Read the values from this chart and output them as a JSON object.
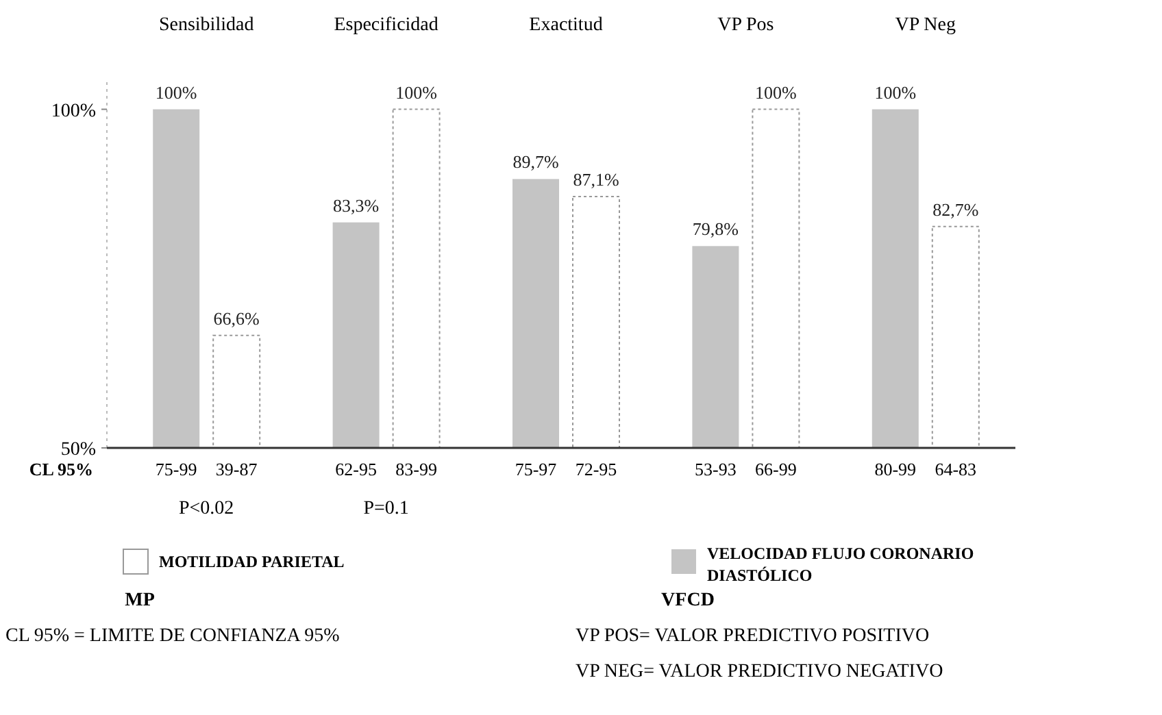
{
  "chart_data": {
    "type": "bar",
    "categories": [
      "Sensibilidad",
      "Especificidad",
      "Exactitud",
      "VP Pos",
      "VP Neg"
    ],
    "series": [
      {
        "name": "VELOCIDAD FLUJO CORONARIO DIASTÓLICO",
        "color": "#c4c4c4",
        "values": [
          100,
          83.3,
          89.7,
          79.8,
          100
        ],
        "value_labels": [
          "100%",
          "83,3%",
          "89,7%",
          "79,8%",
          "100%"
        ]
      },
      {
        "name": "MOTILIDAD PARIETAL",
        "color": "#ffffff",
        "values": [
          66.6,
          100,
          87.1,
          100,
          82.7
        ],
        "value_labels": [
          "66,6%",
          "100%",
          "87,1%",
          "100%",
          "82,7%"
        ]
      }
    ],
    "ylim": [
      50,
      104
    ],
    "yticks": [
      {
        "value": 50,
        "label": "50%"
      },
      {
        "value": 100,
        "label": "100%"
      }
    ],
    "grid": false,
    "legend": "bottom",
    "annotations": [
      "CL 95%",
      "75-99",
      "39-87",
      "62-95",
      "83-99",
      "75-97",
      "72-95",
      "53-93",
      "66-99",
      "80-99",
      "64-83",
      "P<0.02",
      "P=0.1",
      "MP",
      "VFCD",
      "CL 95% = LIMITE DE CONFIANZA 95%",
      "VP POS= VALOR PREDICTIVO POSITIVO",
      "VP NEG= VALOR PREDICTIVO NEGATIVO"
    ]
  }
}
